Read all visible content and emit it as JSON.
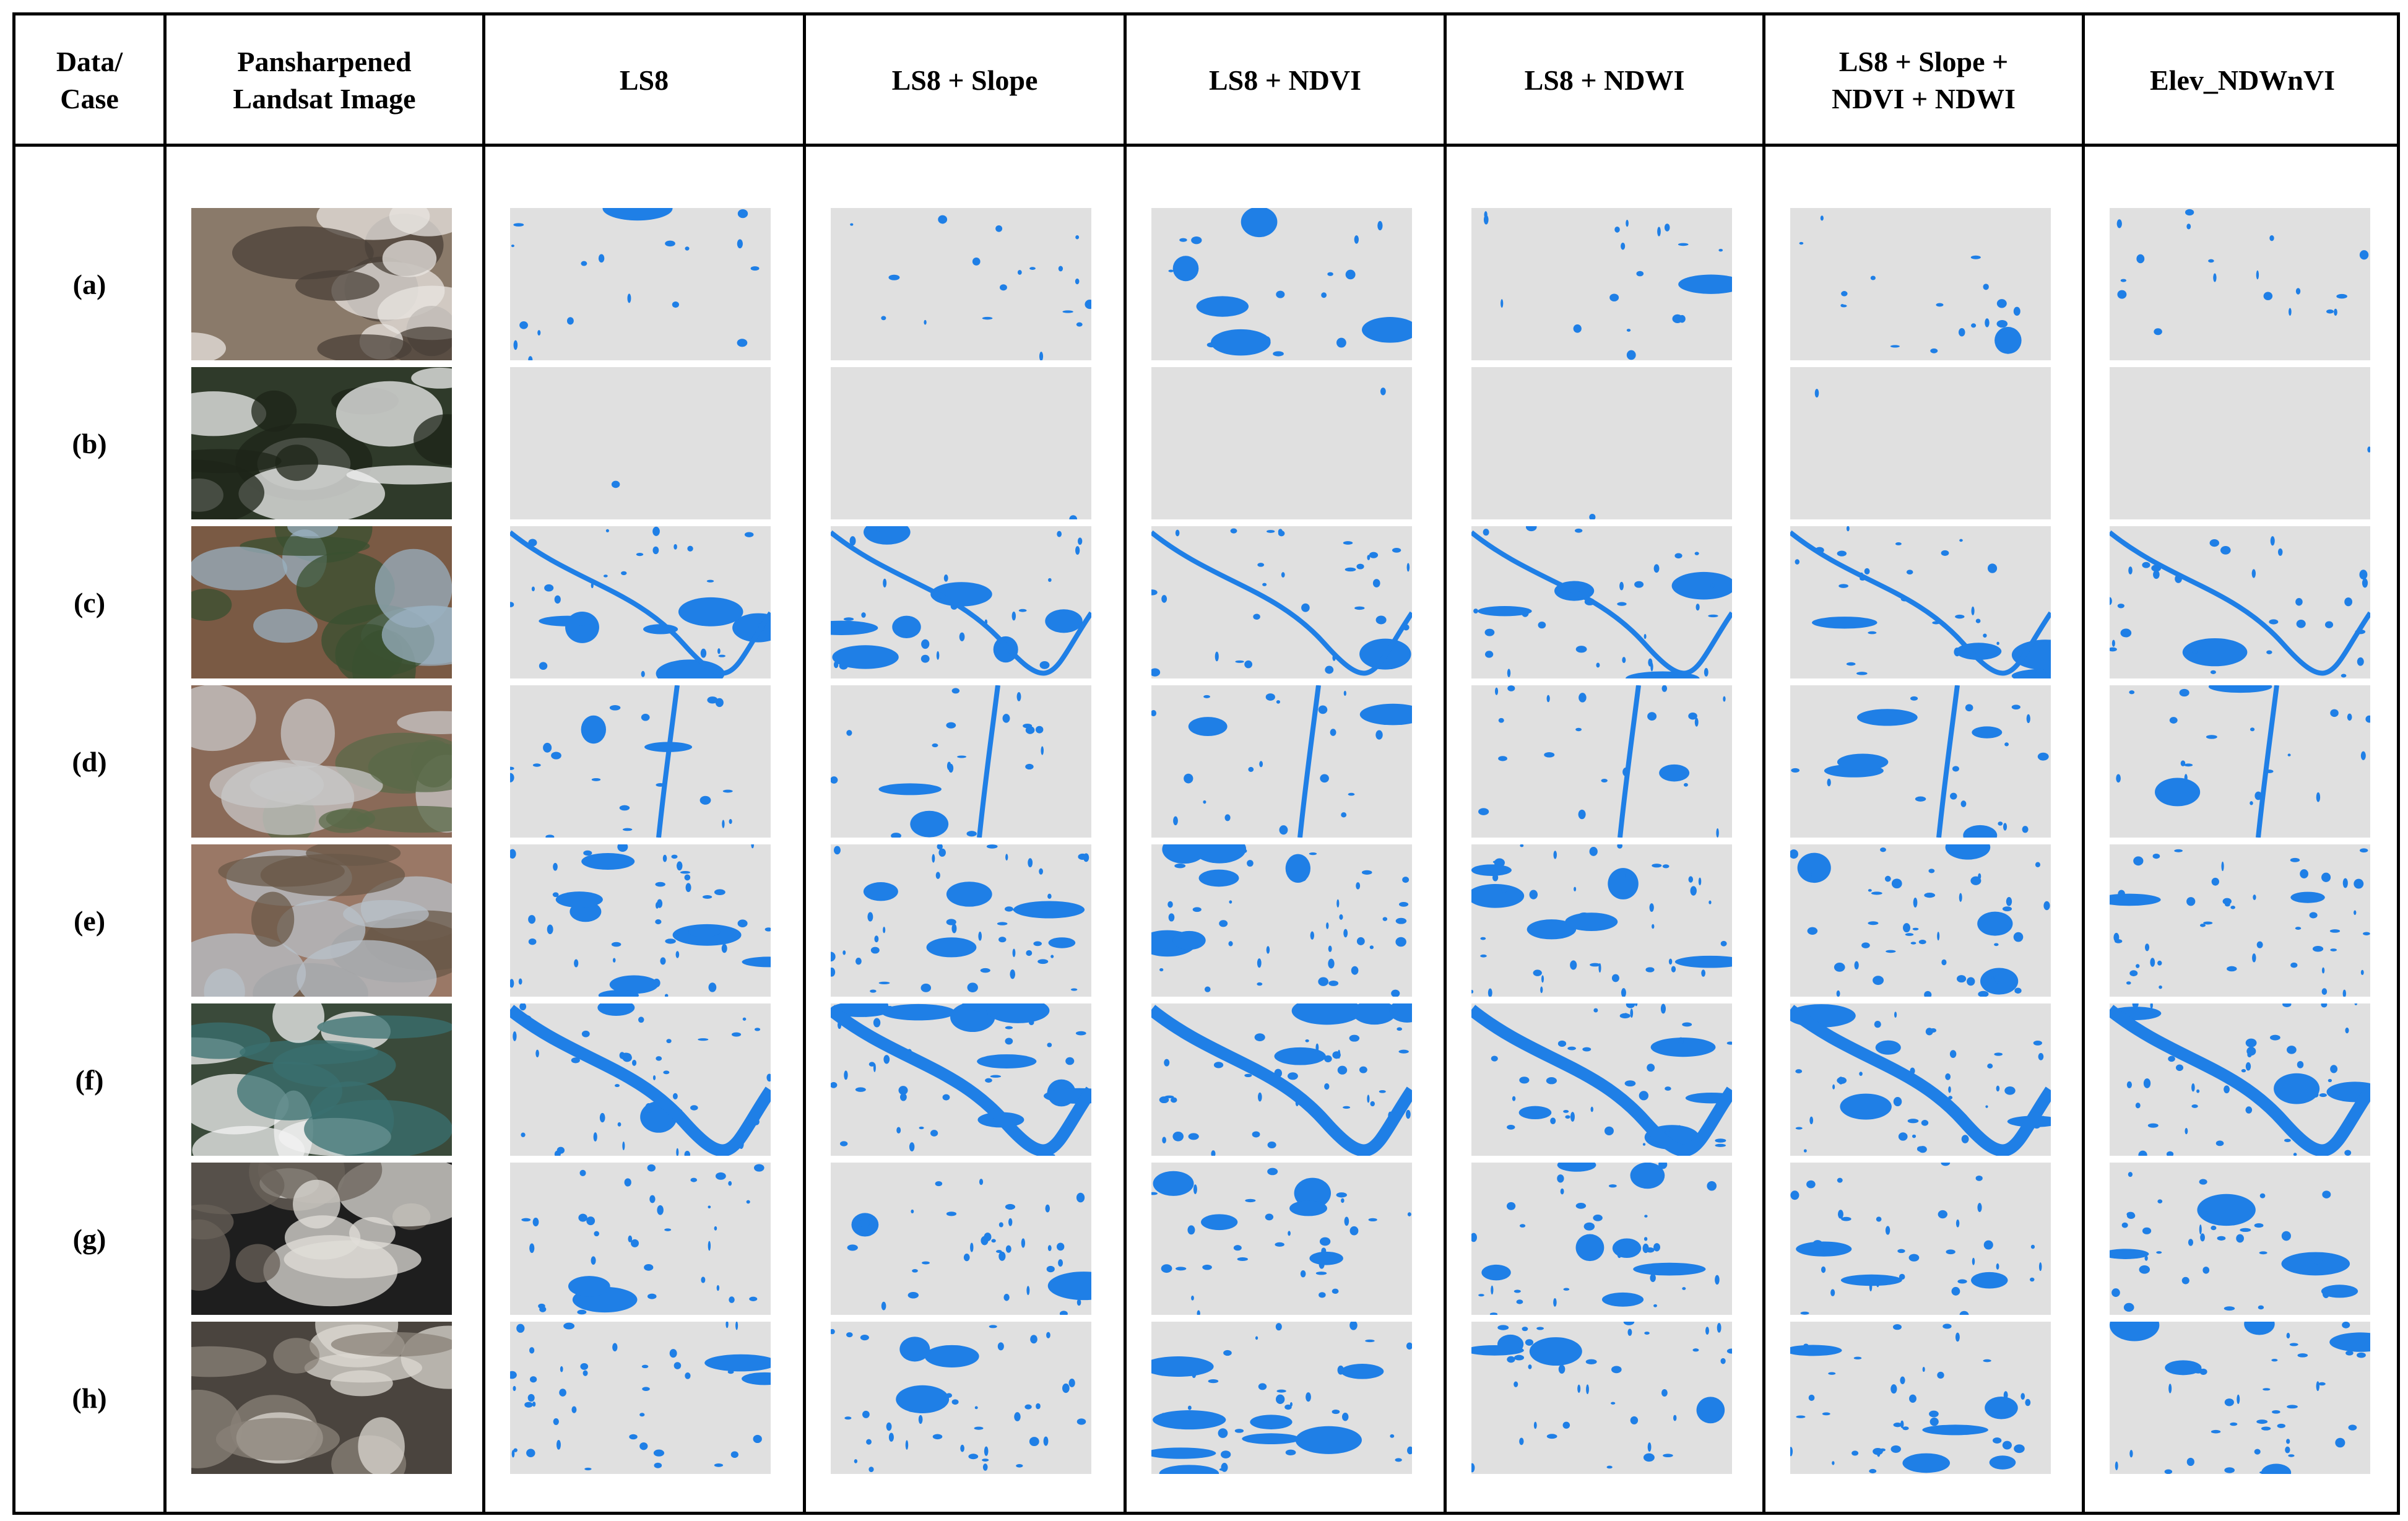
{
  "header": {
    "columns": [
      "Data/\nCase",
      "Pansharpened\nLandsat Image",
      "LS8",
      "LS8 + Slope",
      "LS8 + NDVI",
      "LS8 + NDWI",
      "LS8 + Slope +\nNDVI + NDWI",
      "Elev_NDWnVI"
    ]
  },
  "rows": [
    {
      "label": "(a)"
    },
    {
      "label": "(b)"
    },
    {
      "label": "(c)"
    },
    {
      "label": "(d)"
    },
    {
      "label": "(e)"
    },
    {
      "label": "(f)"
    },
    {
      "label": "(g)"
    },
    {
      "label": "(h)"
    }
  ]
}
